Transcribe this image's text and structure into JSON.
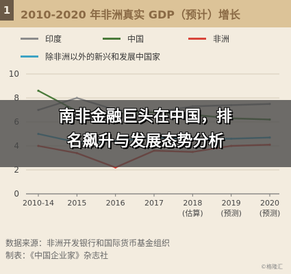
{
  "header": {
    "figure_number": "1",
    "title": "2010-2020 年非洲真实 GDP（预计）增长"
  },
  "banner": {
    "line1": "南非金融巨头在中国，排",
    "line2": "名飙升与发展态势分析"
  },
  "footer": {
    "source": "数据来源：非洲开发银行和国际货币基金组织",
    "made_by": "制表：《中国企业家》杂志社"
  },
  "watermark": "©格隆汇",
  "colors": {
    "india": "#8c8c8c",
    "china": "#4a7a3a",
    "africa": "#d8453a",
    "emerging": "#3da3c4"
  },
  "chart_data": {
    "type": "line",
    "title": "2010-2020 年非洲真实 GDP（预计）增长",
    "categories": [
      "2010-14",
      "2015",
      "2016",
      "2017",
      "2018",
      "2019",
      "2020"
    ],
    "category_sublabels": [
      "",
      "",
      "",
      "",
      "(估算)",
      "(预测)",
      "(预测)"
    ],
    "y_ticks": [
      0,
      2,
      4,
      6,
      8,
      10
    ],
    "ylim": [
      0,
      10
    ],
    "grid": true,
    "legend_position": "top",
    "series": [
      {
        "name": "印度",
        "key": "india",
        "values": [
          7.0,
          8.0,
          7.0,
          6.8,
          7.3,
          7.4,
          7.5
        ]
      },
      {
        "name": "中国",
        "key": "china",
        "values": [
          8.6,
          6.9,
          6.7,
          6.8,
          6.6,
          6.3,
          6.2
        ]
      },
      {
        "name": "非洲",
        "key": "africa",
        "values": [
          4.0,
          3.4,
          2.2,
          3.6,
          3.5,
          4.0,
          4.1
        ]
      },
      {
        "name": "除非洲以外的新兴和发展中国家",
        "key": "emerging",
        "values": [
          5.0,
          4.3,
          4.4,
          4.7,
          4.6,
          4.6,
          4.7
        ]
      }
    ]
  }
}
